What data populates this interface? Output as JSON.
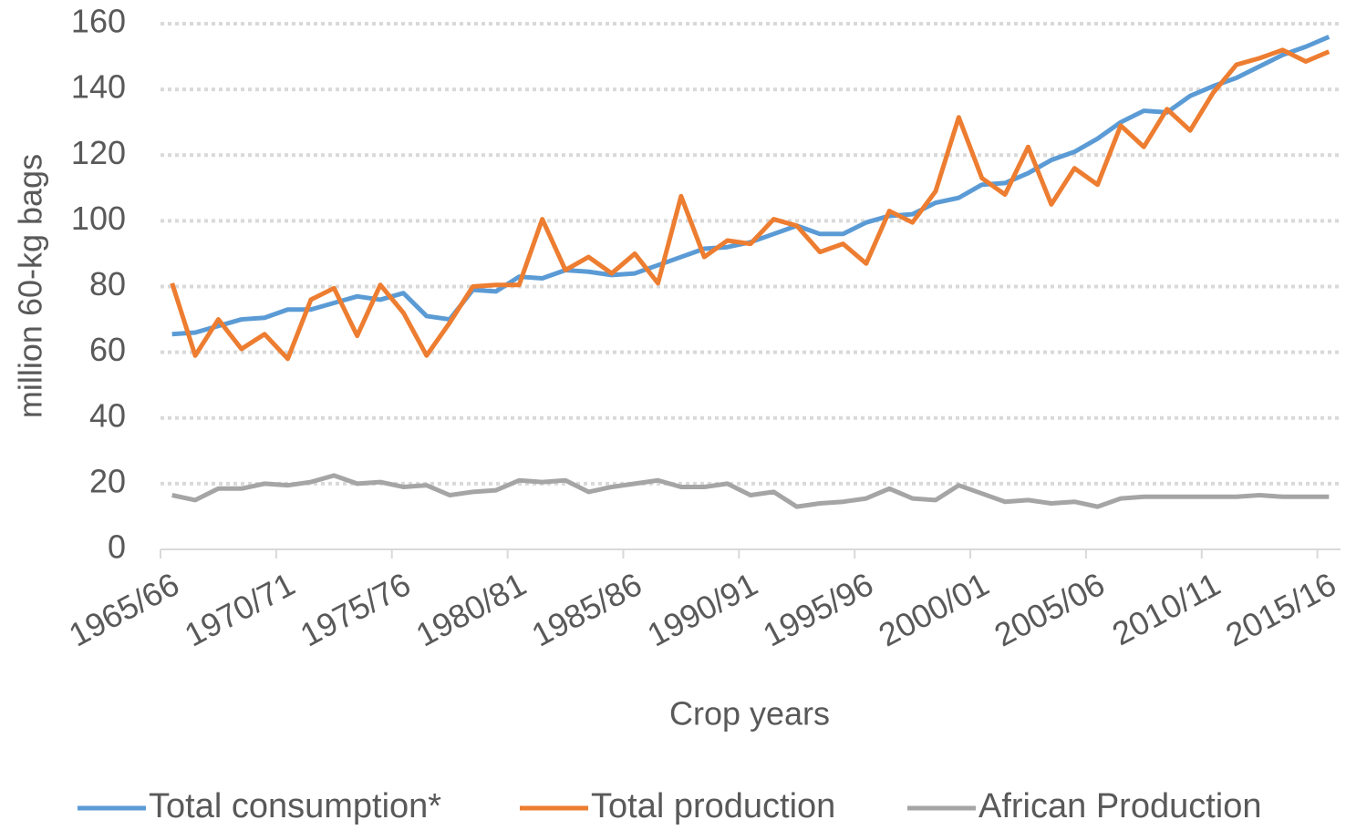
{
  "chart_data": {
    "type": "line",
    "xlabel": "Crop years",
    "ylabel": "million 60-kg bags",
    "categories": [
      "1965/66",
      null,
      null,
      null,
      null,
      "1970/71",
      null,
      null,
      null,
      null,
      "1975/76",
      null,
      null,
      null,
      null,
      "1980/81",
      null,
      null,
      null,
      null,
      "1985/86",
      null,
      null,
      null,
      null,
      "1990/91",
      null,
      null,
      null,
      null,
      "1995/96",
      null,
      null,
      null,
      null,
      "2000/01",
      null,
      null,
      null,
      null,
      "2005/06",
      null,
      null,
      null,
      null,
      "2010/11",
      null,
      null,
      null,
      null,
      "2015/16"
    ],
    "series": [
      {
        "name": "Total consumption*",
        "color": "#5b9bd5",
        "values": [
          65.5,
          66,
          68,
          70,
          70.5,
          73,
          73,
          75,
          77,
          76,
          78,
          71,
          70,
          79,
          78.5,
          83,
          82.5,
          85,
          84.5,
          83.5,
          84,
          86.5,
          89,
          91.5,
          92,
          93.5,
          96,
          98.5,
          96,
          96,
          99.5,
          101.5,
          102,
          105.5,
          107,
          111,
          111.5,
          114.5,
          118.5,
          121,
          125,
          130,
          133.5,
          133,
          138,
          141,
          143.5,
          147,
          150.5,
          153,
          156
        ]
      },
      {
        "name": "Total production",
        "color": "#ed7d31",
        "values": [
          81,
          59,
          70,
          61,
          65.5,
          58,
          76,
          79.5,
          65,
          80.5,
          72,
          59,
          69,
          80,
          80.5,
          80.5,
          100.5,
          85,
          89,
          84,
          90,
          81,
          107.5,
          89,
          94,
          93,
          100.5,
          98.5,
          90.5,
          93,
          87,
          103,
          99.5,
          109,
          131.5,
          113,
          108,
          122.5,
          105,
          116,
          111,
          129,
          122.5,
          134,
          127.5,
          139,
          147.5,
          149.5,
          152,
          148.5,
          151.5
        ]
      },
      {
        "name": "African Production",
        "color": "#a5a5a5",
        "values": [
          16.5,
          15,
          18.5,
          18.5,
          20,
          19.5,
          20.5,
          22.5,
          20,
          20.5,
          19,
          19.5,
          16.5,
          17.5,
          18,
          21,
          20.5,
          21,
          17.5,
          19,
          20,
          21,
          19,
          19,
          20,
          16.5,
          17.5,
          13,
          14,
          14.5,
          15.5,
          18.5,
          15.5,
          15,
          19.5,
          17,
          14.5,
          15,
          14,
          14.5,
          13,
          15.5,
          16,
          16,
          16,
          16,
          16,
          16.5,
          16,
          16,
          16
        ]
      }
    ],
    "ylim": [
      0,
      160
    ],
    "yticks": [
      0,
      20,
      40,
      60,
      80,
      100,
      120,
      140,
      160
    ],
    "grid": true,
    "legend": "bottom"
  }
}
